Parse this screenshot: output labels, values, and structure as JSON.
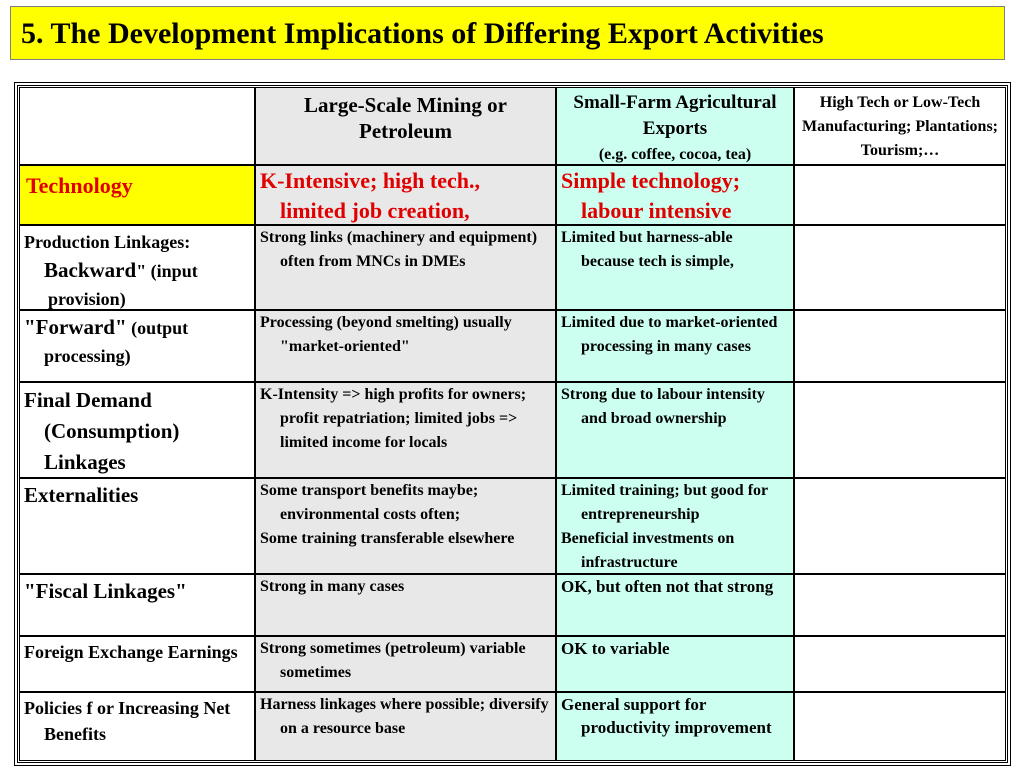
{
  "title": "5. The Development Implications of Differing Export Activities",
  "columns": {
    "mining": "Large-Scale Mining or Petroleum",
    "farm": "Small-Farm Agricultural Exports",
    "farm_sub": "(e.g. coffee, cocoa, tea)",
    "hightech": "High Tech  or  Low-Tech Manufacturing; Plantations; Tourism;…"
  },
  "rows": {
    "technology": {
      "label": "Technology",
      "mining": "K-Intensive; high tech., limited job creation,",
      "farm": "Simple technology; labour intensive"
    },
    "backward": {
      "label_1": "Production Linkages:",
      "label_2": "Backward",
      "label_3": "\" (input provision)",
      "mining": "Strong links (machinery and equipment) often from MNCs in DMEs",
      "farm": "Limited but harness-able because tech is simple,"
    },
    "forward": {
      "label_1": "\"Forward\"",
      "label_2": " (output processing)",
      "mining": "Processing (beyond smelting) usually \"market-oriented\"",
      "farm": "Limited due to market-oriented processing in many cases"
    },
    "final_demand": {
      "label": "Final Demand (Consumption) Linkages",
      "mining": "K-Intensity => high profits for owners; profit repatriation; limited jobs => limited income for locals",
      "farm": "Strong due to labour intensity and broad ownership"
    },
    "externalities": {
      "label": "Externalities",
      "mining_1": "Some transport benefits maybe; environmental costs often;",
      "mining_2": "Some training transferable elsewhere",
      "farm_1": "Limited training; but good for entrepreneurship",
      "farm_2": "Beneficial investments on infrastructure"
    },
    "fiscal": {
      "label": "\"Fiscal Linkages\"",
      "mining": "Strong in many cases",
      "farm": "OK, but often not that strong"
    },
    "forex": {
      "label": "Foreign Exchange Earnings",
      "mining": "Strong sometimes (petroleum) variable sometimes",
      "farm": "OK to variable"
    },
    "policies": {
      "label": "Policies f or Increasing Net Benefits",
      "mining": "Harness linkages where possible; diversify on a resource base",
      "farm": "General support for productivity improvement"
    }
  },
  "colors": {
    "title_bg": "#ffff00",
    "mining_bg": "#e8e8e8",
    "farm_bg": "#ccfff0",
    "tech_text": "#e00000"
  }
}
